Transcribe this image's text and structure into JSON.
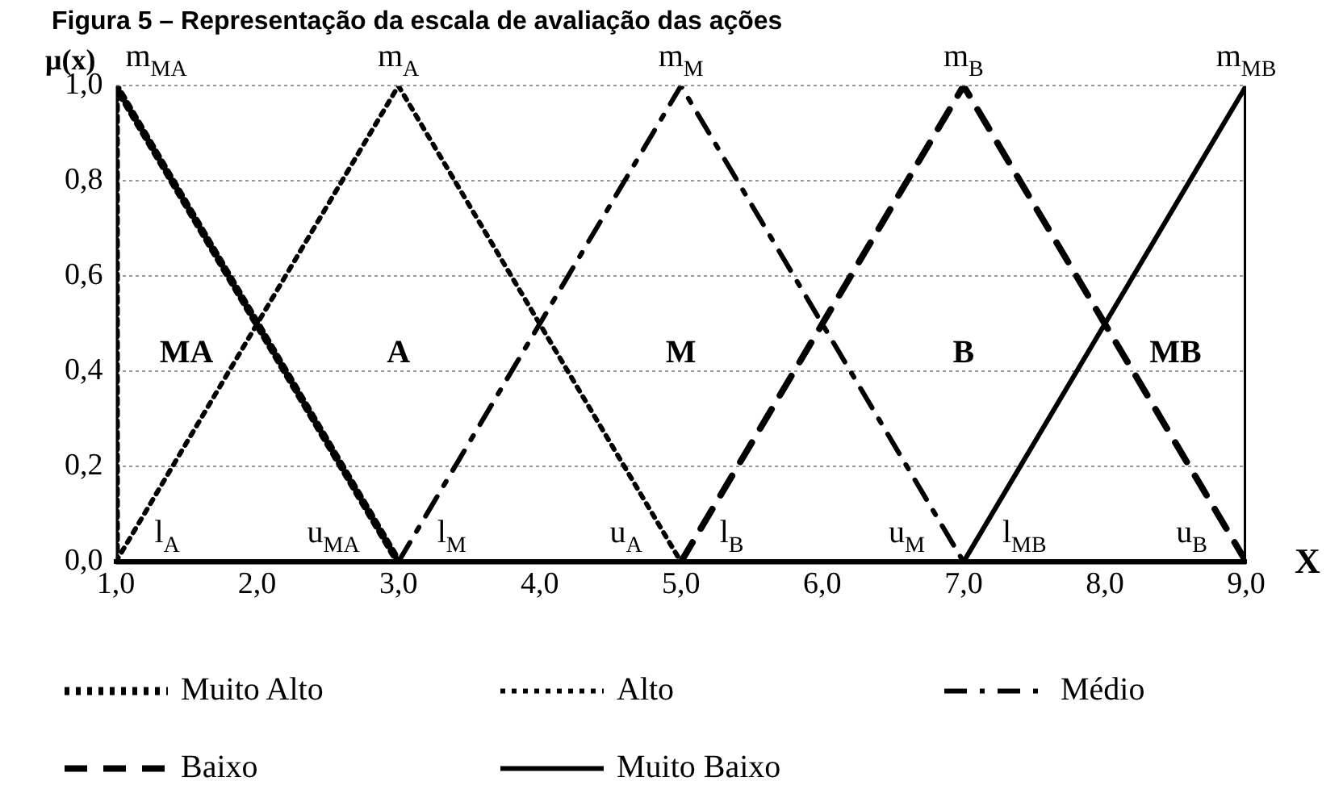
{
  "chart_data": {
    "type": "line",
    "title": "Figura 5 – Representação da escala de avaliação das ações",
    "xlabel": "X",
    "ylabel": "μ(x)",
    "xlim": [
      1,
      9
    ],
    "xticks": [
      {
        "value": 1,
        "label": "1,0"
      },
      {
        "value": 2,
        "label": "2,0"
      },
      {
        "value": 3,
        "label": "3,0"
      },
      {
        "value": 4,
        "label": "4,0"
      },
      {
        "value": 5,
        "label": "5,0"
      },
      {
        "value": 6,
        "label": "6,0"
      },
      {
        "value": 7,
        "label": "7,0"
      },
      {
        "value": 8,
        "label": "8,0"
      },
      {
        "value": 9,
        "label": "9,0"
      }
    ],
    "ylim": [
      0,
      1
    ],
    "yticks": [
      {
        "value": 0,
        "label": "0,0"
      },
      {
        "value": 0.2,
        "label": "0,2"
      },
      {
        "value": 0.4,
        "label": "0,4"
      },
      {
        "value": 0.6,
        "label": "0,6"
      },
      {
        "value": 0.8,
        "label": "0,8"
      },
      {
        "value": 1,
        "label": "1,0"
      }
    ],
    "grid": "y",
    "legend": "bottom",
    "marker": "none",
    "series": [
      {
        "name": "Muito Alto",
        "color": "#000000",
        "line_style": "dotted",
        "x": [
          1,
          1,
          3
        ],
        "values": [
          0,
          1,
          0
        ]
      },
      {
        "name": "Alto",
        "color": "#000000",
        "line_style": "dotted",
        "x": [
          1,
          3,
          5
        ],
        "values": [
          0,
          1,
          0
        ]
      },
      {
        "name": "Médio",
        "color": "#000000",
        "line_style": "dashdot",
        "x": [
          3,
          5,
          7
        ],
        "values": [
          0,
          1,
          0
        ]
      },
      {
        "name": "Baixo",
        "color": "#000000",
        "line_style": "dashed",
        "x": [
          5,
          7,
          9
        ],
        "values": [
          0,
          1,
          0
        ]
      },
      {
        "name": "Muito Baixo",
        "color": "#000000",
        "line_style": "solid",
        "x": [
          7,
          9,
          9
        ],
        "values": [
          0,
          1,
          0
        ]
      }
    ],
    "annotations": [
      {
        "text": "m$_{MA}$",
        "x": 1,
        "y": 1
      },
      {
        "text": "m$_{A}$",
        "x": 3,
        "y": 1
      },
      {
        "text": "m$_{M}$",
        "x": 5,
        "y": 1
      },
      {
        "text": "m$_{B}$",
        "x": 7,
        "y": 1
      },
      {
        "text": "m$_{MB}$",
        "x": 9,
        "y": 1
      },
      {
        "text": "l$_{A}$",
        "x": 1,
        "y": 0
      },
      {
        "text": "u$_{MA}$",
        "x": 3,
        "y": 0
      },
      {
        "text": "l$_{M}$",
        "x": 3,
        "y": 0
      },
      {
        "text": "u$_{A}$",
        "x": 5,
        "y": 0
      },
      {
        "text": "l$_{B}$",
        "x": 5,
        "y": 0
      },
      {
        "text": "u$_{M}$",
        "x": 7,
        "y": 0
      },
      {
        "text": "l$_{MB}$",
        "x": 7,
        "y": 0
      },
      {
        "text": "u$_{B}$",
        "x": 9,
        "y": 0
      },
      "MA",
      "A",
      "M",
      "B",
      "MB"
    ]
  }
}
